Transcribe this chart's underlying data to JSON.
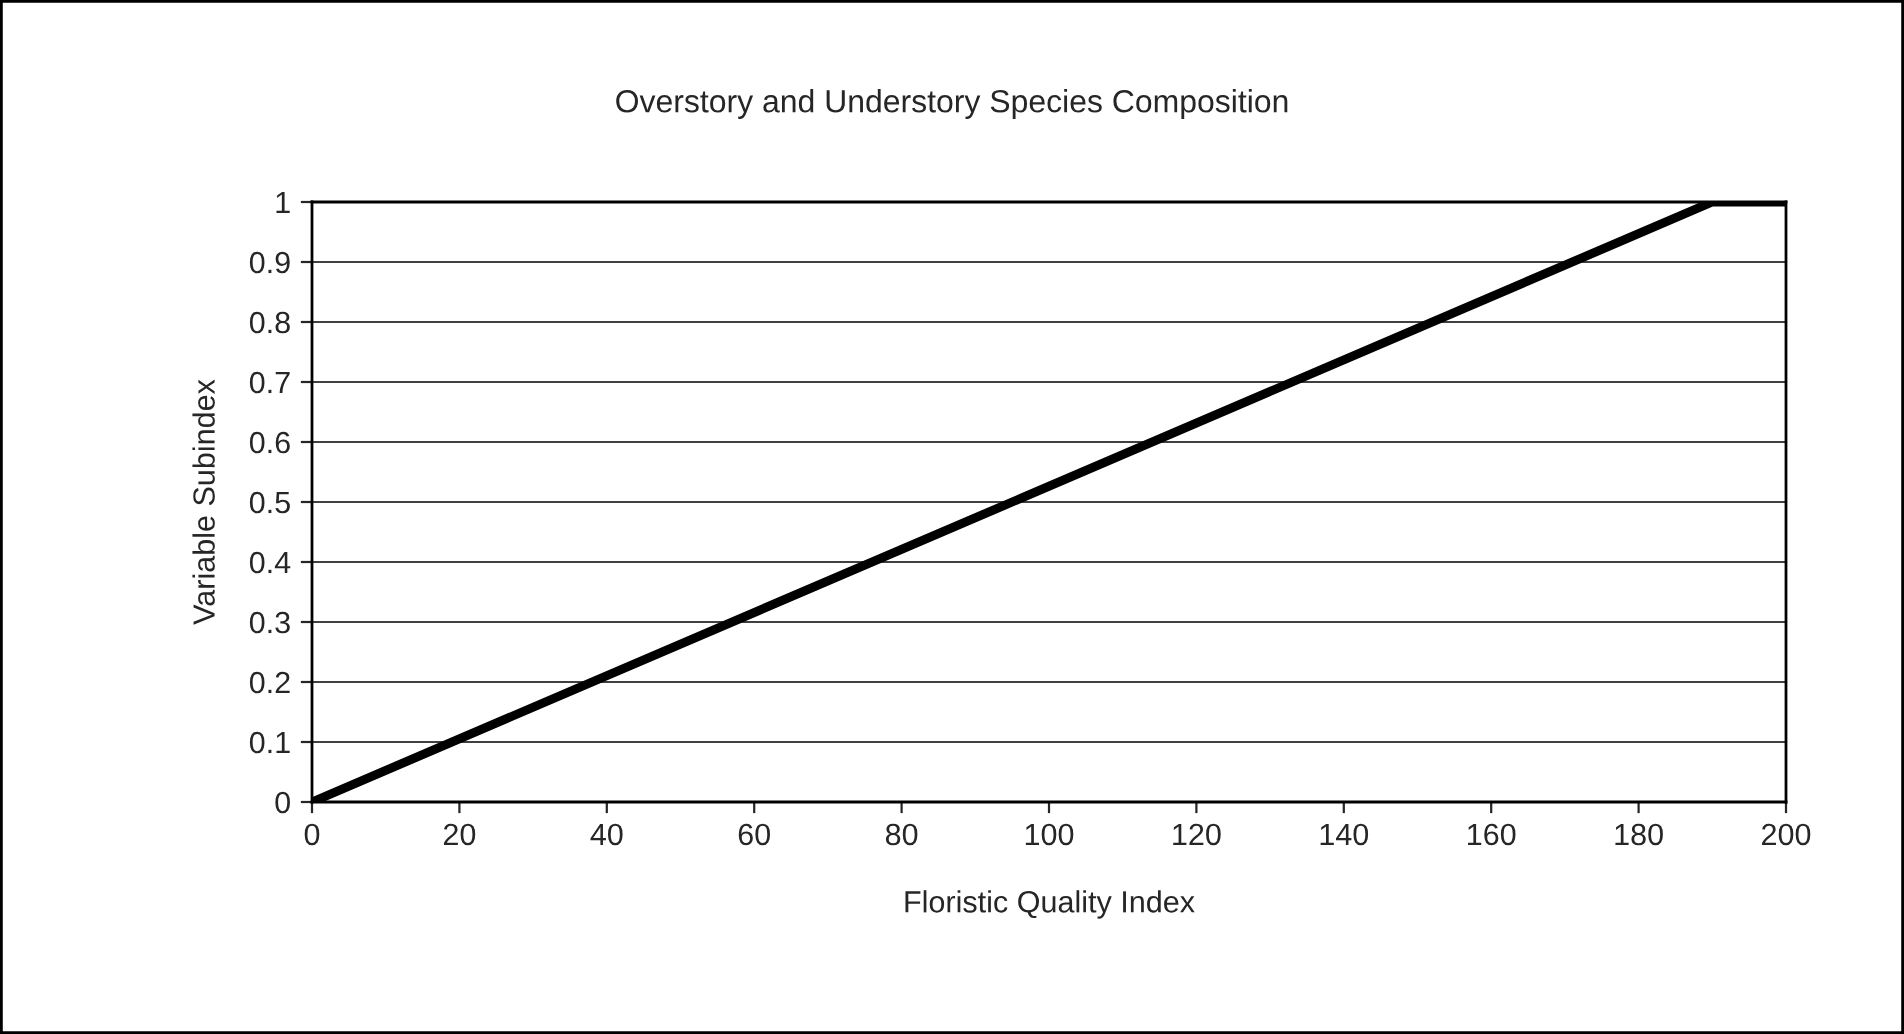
{
  "chart_data": {
    "type": "line",
    "title": "Overstory and Understory Species Composition",
    "xlabel": "Floristic Quality Index",
    "ylabel": "Variable Subindex",
    "x": [
      0,
      190,
      200
    ],
    "series": [
      {
        "color": "#000000",
        "values": [
          0,
          1,
          1
        ]
      }
    ],
    "xlim": [
      0,
      200
    ],
    "xticks": [
      0,
      20,
      40,
      60,
      80,
      100,
      120,
      140,
      160,
      180,
      200
    ],
    "ylim": [
      0,
      1
    ],
    "yticks": [
      0,
      {
        "value": 0.1,
        "label": "0.1"
      },
      {
        "value": 0.2,
        "label": "0.2"
      },
      {
        "value": 0.3,
        "label": "0.3"
      },
      {
        "value": 0.4,
        "label": "0.4"
      },
      {
        "value": 0.5,
        "label": "0.5"
      },
      {
        "value": 0.6,
        "label": "0.6"
      },
      {
        "value": 0.7,
        "label": "0.7"
      },
      {
        "value": 0.8,
        "label": "0.8"
      },
      {
        "value": 0.9,
        "label": "0.9"
      },
      1
    ],
    "grid": "y",
    "marker": "none",
    "line_style": "solid"
  }
}
